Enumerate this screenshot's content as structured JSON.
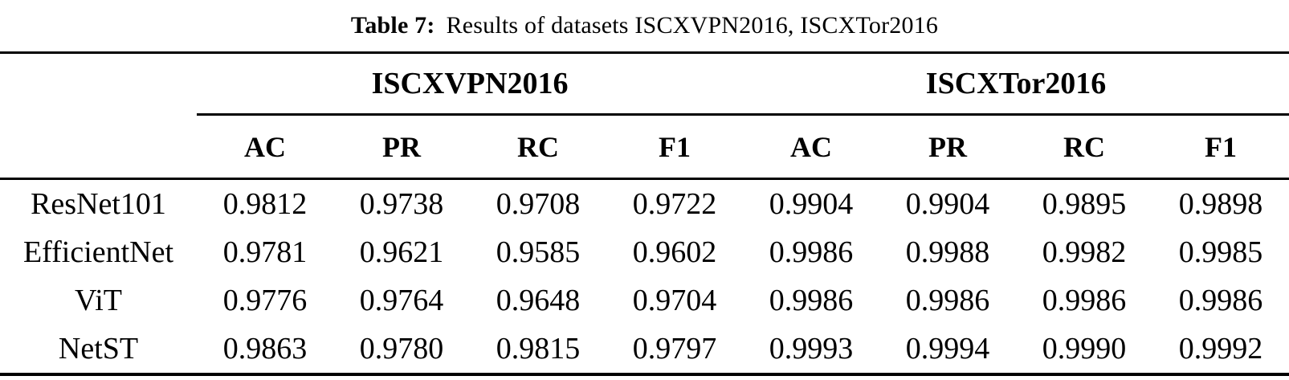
{
  "caption": {
    "label": "Table 7:",
    "text": "Results of datasets ISCXVPN2016, ISCXTor2016"
  },
  "table": {
    "groups": [
      {
        "label": "ISCXVPN2016"
      },
      {
        "label": "ISCXTor2016"
      }
    ],
    "metric_headers": [
      "AC",
      "PR",
      "RC",
      "F1",
      "AC",
      "PR",
      "RC",
      "F1"
    ],
    "rows": [
      {
        "model": "ResNet101",
        "values": [
          "0.9812",
          "0.9738",
          "0.9708",
          "0.9722",
          "0.9904",
          "0.9904",
          "0.9895",
          "0.9898"
        ]
      },
      {
        "model": "EfficientNet",
        "values": [
          "0.9781",
          "0.9621",
          "0.9585",
          "0.9602",
          "0.9986",
          "0.9988",
          "0.9982",
          "0.9985"
        ]
      },
      {
        "model": "ViT",
        "values": [
          "0.9776",
          "0.9764",
          "0.9648",
          "0.9704",
          "0.9986",
          "0.9986",
          "0.9986",
          "0.9986"
        ]
      },
      {
        "model": "NetST",
        "values": [
          "0.9863",
          "0.9780",
          "0.9815",
          "0.9797",
          "0.9993",
          "0.9994",
          "0.9990",
          "0.9992"
        ]
      }
    ]
  },
  "chart_data": {
    "type": "table",
    "title": "Table 7: Results of datasets ISCXVPN2016, ISCXTor2016",
    "column_groups": [
      {
        "name": "ISCXVPN2016",
        "columns": [
          "AC",
          "PR",
          "RC",
          "F1"
        ]
      },
      {
        "name": "ISCXTor2016",
        "columns": [
          "AC",
          "PR",
          "RC",
          "F1"
        ]
      }
    ],
    "row_header": "model",
    "rows": [
      {
        "model": "ResNet101",
        "ISCXVPN2016": {
          "AC": 0.9812,
          "PR": 0.9738,
          "RC": 0.9708,
          "F1": 0.9722
        },
        "ISCXTor2016": {
          "AC": 0.9904,
          "PR": 0.9904,
          "RC": 0.9895,
          "F1": 0.9898
        }
      },
      {
        "model": "EfficientNet",
        "ISCXVPN2016": {
          "AC": 0.9781,
          "PR": 0.9621,
          "RC": 0.9585,
          "F1": 0.9602
        },
        "ISCXTor2016": {
          "AC": 0.9986,
          "PR": 0.9988,
          "RC": 0.9982,
          "F1": 0.9985
        }
      },
      {
        "model": "ViT",
        "ISCXVPN2016": {
          "AC": 0.9776,
          "PR": 0.9764,
          "RC": 0.9648,
          "F1": 0.9704
        },
        "ISCXTor2016": {
          "AC": 0.9986,
          "PR": 0.9986,
          "RC": 0.9986,
          "F1": 0.9986
        }
      },
      {
        "model": "NetST",
        "ISCXVPN2016": {
          "AC": 0.9863,
          "PR": 0.978,
          "RC": 0.9815,
          "F1": 0.9797
        },
        "ISCXTor2016": {
          "AC": 0.9993,
          "PR": 0.9994,
          "RC": 0.999,
          "F1": 0.9992
        }
      }
    ]
  }
}
